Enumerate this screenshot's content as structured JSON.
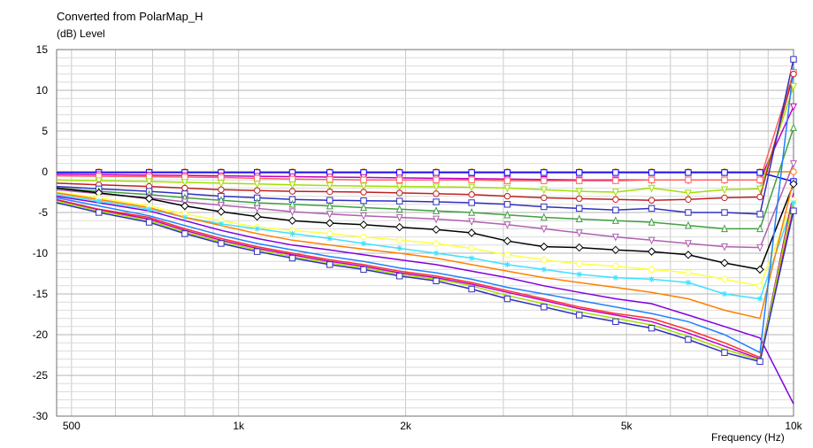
{
  "chart_data": {
    "type": "line",
    "title": "Converted from PolarMap_H",
    "ylabel": "(dB)  Level",
    "xlabel": "Frequency  (Hz)",
    "x_scale": "log",
    "xlim": [
      470,
      10000
    ],
    "ylim": [
      -30,
      15
    ],
    "grid": true,
    "y_ticks": [
      15,
      10,
      5,
      0,
      -5,
      -10,
      -15,
      -20,
      -25,
      -30
    ],
    "x_tick_labels": [
      {
        "value": 500,
        "label": "500"
      },
      {
        "value": 1000,
        "label": "1k"
      },
      {
        "value": 2000,
        "label": "2k"
      },
      {
        "value": 5000,
        "label": "5k"
      },
      {
        "value": 10000,
        "label": "10k"
      }
    ],
    "x": [
      470,
      560,
      690,
      800,
      930,
      1080,
      1250,
      1460,
      1680,
      1950,
      2270,
      2630,
      3050,
      3550,
      4110,
      4780,
      5550,
      6460,
      7510,
      8700,
      10000
    ],
    "series": [
      {
        "color": "#ff8000",
        "marker": "circle",
        "values": [
          0,
          0,
          0,
          0,
          0,
          0,
          0,
          0,
          0,
          0,
          0,
          0,
          0,
          0,
          0,
          0,
          0,
          0,
          0,
          0,
          0
        ]
      },
      {
        "color": "#0000ff",
        "marker": "square",
        "values": [
          -0.1,
          -0.1,
          -0.1,
          -0.1,
          -0.1,
          -0.1,
          -0.1,
          -0.1,
          -0.1,
          -0.1,
          -0.1,
          -0.1,
          -0.1,
          -0.1,
          -0.1,
          -0.1,
          -0.1,
          -0.1,
          -0.1,
          -0.1,
          -1.2
        ]
      },
      {
        "color": "#c000c0",
        "marker": "triangle-down",
        "values": [
          -0.3,
          -0.35,
          -0.4,
          -0.45,
          -0.5,
          -0.55,
          -0.6,
          -0.65,
          -0.7,
          -0.75,
          -0.8,
          -0.85,
          -0.9,
          -0.95,
          -1.0,
          -1.0,
          -1.0,
          -1.0,
          -1.0,
          -1.0,
          8.0
        ]
      },
      {
        "color": "#ff6060",
        "marker": "square",
        "values": [
          -0.5,
          -0.55,
          -0.6,
          -0.65,
          -0.7,
          -0.8,
          -0.9,
          -0.95,
          -1.0,
          -1.0,
          -1.0,
          -1.0,
          -1.1,
          -1.1,
          -1.1,
          -1.1,
          -1.0,
          -1.0,
          -1.0,
          -1.0,
          12.2
        ]
      },
      {
        "color": "#a0e000",
        "marker": "triangle-down",
        "values": [
          -1.0,
          -1.1,
          -1.2,
          -1.3,
          -1.4,
          -1.5,
          -1.6,
          -1.7,
          -1.75,
          -1.8,
          -1.85,
          -1.9,
          -2.0,
          -2.2,
          -2.4,
          -2.5,
          -2.0,
          -2.6,
          -2.2,
          -2.1,
          10.5
        ]
      },
      {
        "color": "#c02020",
        "marker": "circle",
        "values": [
          -1.4,
          -1.6,
          -1.8,
          -2.0,
          -2.2,
          -2.3,
          -2.4,
          -2.45,
          -2.5,
          -2.6,
          -2.7,
          -2.8,
          -3.0,
          -3.2,
          -3.3,
          -3.4,
          -3.5,
          -3.4,
          -3.2,
          -3.1,
          12.0
        ]
      },
      {
        "color": "#3030c0",
        "marker": "square",
        "values": [
          -1.8,
          -2.1,
          -2.4,
          -2.7,
          -3.0,
          -3.2,
          -3.4,
          -3.5,
          -3.55,
          -3.6,
          -3.7,
          -3.8,
          -4.0,
          -4.3,
          -4.5,
          -4.7,
          -4.5,
          -5.0,
          -5.0,
          -5.2,
          13.8
        ]
      },
      {
        "color": "#40a040",
        "marker": "triangle",
        "values": [
          -2.0,
          -2.4,
          -2.8,
          -3.2,
          -3.5,
          -3.8,
          -4.0,
          -4.2,
          -4.4,
          -4.6,
          -4.8,
          -5.0,
          -5.3,
          -5.6,
          -5.8,
          -6.0,
          -6.2,
          -6.6,
          -7.0,
          -7.0,
          5.4
        ]
      },
      {
        "color": "#b060b0",
        "marker": "triangle-down",
        "values": [
          -2.2,
          -2.7,
          -3.2,
          -3.7,
          -4.1,
          -4.5,
          -4.9,
          -5.2,
          -5.4,
          -5.6,
          -5.8,
          -6.1,
          -6.5,
          -7.0,
          -7.5,
          -8.0,
          -8.4,
          -8.8,
          -9.2,
          -9.3,
          1.0
        ]
      },
      {
        "color": "#000000",
        "marker": "diamond",
        "values": [
          -2.0,
          -2.6,
          -3.3,
          -4.2,
          -4.9,
          -5.5,
          -6.0,
          -6.3,
          -6.5,
          -6.8,
          -7.1,
          -7.5,
          -8.5,
          -9.2,
          -9.3,
          -9.6,
          -9.8,
          -10.2,
          -11.2,
          -12.0,
          -1.5
        ]
      },
      {
        "color": "#ffff40",
        "marker": "circle",
        "values": [
          -2.5,
          -3.2,
          -4.2,
          -5.2,
          -6.0,
          -6.8,
          -7.2,
          -7.6,
          -8.0,
          -8.4,
          -8.8,
          -9.4,
          -10.2,
          -10.8,
          -11.3,
          -11.6,
          -12.0,
          -12.4,
          -13.2,
          -14.0,
          -3.5
        ]
      },
      {
        "color": "#40e0ff",
        "marker": "star",
        "values": [
          -2.8,
          -3.6,
          -4.6,
          -5.6,
          -6.4,
          -7.0,
          -7.6,
          -8.2,
          -8.8,
          -9.4,
          -10.0,
          -10.6,
          -11.4,
          -12.0,
          -12.6,
          -13.0,
          -13.2,
          -13.6,
          -15.0,
          -15.6,
          -3.8
        ]
      },
      {
        "color": "#ff8000",
        "marker": "none",
        "values": [
          -2.6,
          -3.4,
          -4.4,
          -5.6,
          -6.6,
          -7.6,
          -8.4,
          -9.0,
          -9.5,
          -10.0,
          -10.6,
          -11.4,
          -12.2,
          -13.0,
          -13.6,
          -14.2,
          -14.8,
          -15.6,
          -17.0,
          -18.0,
          -1.0
        ]
      },
      {
        "color": "#8000e0",
        "marker": "none",
        "values": [
          -3.0,
          -3.8,
          -4.8,
          -6.0,
          -7.2,
          -8.2,
          -9.0,
          -9.6,
          -10.2,
          -10.8,
          -11.4,
          -12.2,
          -13.0,
          -14.0,
          -14.8,
          -15.6,
          -16.2,
          -17.6,
          -19.0,
          -20.4,
          -28.5
        ]
      },
      {
        "color": "#2080ff",
        "marker": "none",
        "values": [
          -3.2,
          -4.2,
          -5.4,
          -6.6,
          -7.8,
          -8.8,
          -9.6,
          -10.4,
          -11.0,
          -11.8,
          -12.4,
          -13.2,
          -14.2,
          -15.0,
          -15.8,
          -16.6,
          -17.4,
          -18.4,
          -20.0,
          -22.2,
          12.8
        ]
      },
      {
        "color": "#ff3030",
        "marker": "none",
        "values": [
          -3.4,
          -4.6,
          -5.6,
          -7.0,
          -8.2,
          -9.2,
          -10.0,
          -10.8,
          -11.4,
          -12.2,
          -12.8,
          -13.6,
          -14.6,
          -15.6,
          -16.6,
          -17.4,
          -18.0,
          -19.4,
          -21.0,
          -22.8,
          -4.4
        ]
      },
      {
        "color": "#c000c0",
        "marker": "none",
        "values": [
          -3.5,
          -4.7,
          -5.8,
          -7.2,
          -8.4,
          -9.4,
          -10.2,
          -11.0,
          -11.6,
          -12.4,
          -13.0,
          -13.8,
          -14.8,
          -15.8,
          -16.8,
          -17.6,
          -18.4,
          -19.8,
          -21.4,
          -23.0,
          -2.6
        ]
      },
      {
        "color": "#a0e000",
        "marker": "none",
        "values": [
          -3.6,
          -4.8,
          -6.0,
          -7.4,
          -8.6,
          -9.6,
          -10.4,
          -11.2,
          -11.8,
          -12.6,
          -13.2,
          -14.0,
          -15.2,
          -16.2,
          -17.2,
          -18.0,
          -18.8,
          -20.2,
          -21.8,
          -23.1,
          -3.2
        ]
      },
      {
        "color": "#3030c0",
        "marker": "square",
        "values": [
          -3.8,
          -5.0,
          -6.2,
          -7.6,
          -8.8,
          -9.8,
          -10.6,
          -11.4,
          -12.0,
          -12.8,
          -13.4,
          -14.4,
          -15.6,
          -16.6,
          -17.6,
          -18.4,
          -19.2,
          -20.6,
          -22.2,
          -23.3,
          -4.8
        ]
      }
    ]
  }
}
